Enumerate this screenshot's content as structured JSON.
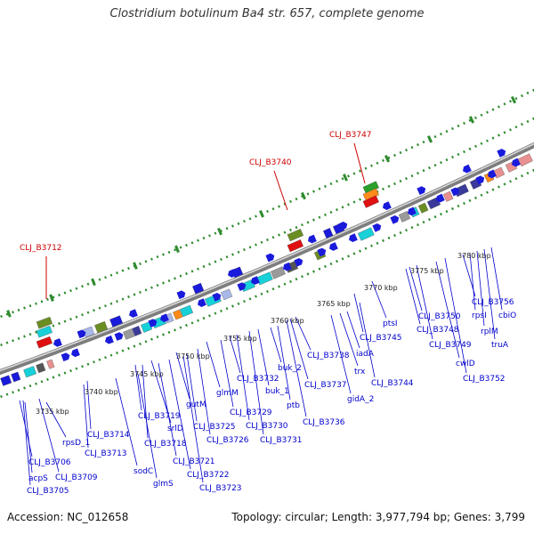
{
  "title": "Clostridium botulinum Ba4 str. 657, complete genome",
  "footer": {
    "accession": "Accession: NC_012658",
    "topology": "Topology: circular; Length: 3,977,794 bp; Genes: 3,799"
  },
  "colors": {
    "backbone": "#8a8a8a",
    "tick": "#2e8b2e",
    "gene_blue": "#1a1adb",
    "label_blue": "#0000cc",
    "label_red": "#cc0000",
    "cyan": "#18d0d8",
    "gray": "#9a9a9a",
    "darkgray": "#555555",
    "olive": "#6b8e23",
    "orange": "#ff8c1a",
    "pink": "#e89090",
    "navy": "#3a3a9a",
    "green": "#2aa02a",
    "red": "#e01010",
    "lightblue": "#a8b8e8"
  },
  "ticks": [
    {
      "label": "3735 kbp"
    },
    {
      "label": "3740 kbp"
    },
    {
      "label": "3745 kbp"
    },
    {
      "label": "3750 kbp"
    },
    {
      "label": "3755 kbp"
    },
    {
      "label": "3760 kbp"
    },
    {
      "label": "3765 kbp"
    },
    {
      "label": "3770 kbp"
    },
    {
      "label": "3775 kbp"
    },
    {
      "label": "3780 kbp"
    }
  ],
  "gene_labels": [
    {
      "text": "CLJ_B3712"
    },
    {
      "text": "CLJ_B3740"
    },
    {
      "text": "CLJ_B3747"
    },
    {
      "text": "CLJ_B3706"
    },
    {
      "text": "acpS"
    },
    {
      "text": "CLJ_B3705"
    },
    {
      "text": "rpsD_1"
    },
    {
      "text": "CLJ_B3709"
    },
    {
      "text": "CLJ_B3714"
    },
    {
      "text": "CLJ_B3713"
    },
    {
      "text": "sodC"
    },
    {
      "text": "glmS"
    },
    {
      "text": "CLJ_B3719"
    },
    {
      "text": "srlD"
    },
    {
      "text": "CLJ_B3718"
    },
    {
      "text": "gutM"
    },
    {
      "text": "CLJ_B3721"
    },
    {
      "text": "CLJ_B3722"
    },
    {
      "text": "CLJ_B3723"
    },
    {
      "text": "glmM"
    },
    {
      "text": "CLJ_B3725"
    },
    {
      "text": "CLJ_B3726"
    },
    {
      "text": "CLJ_B3732"
    },
    {
      "text": "CLJ_B3729"
    },
    {
      "text": "CLJ_B3730"
    },
    {
      "text": "CLJ_B3731"
    },
    {
      "text": "buk_2"
    },
    {
      "text": "buk_1"
    },
    {
      "text": "ptb"
    },
    {
      "text": "CLJ_B3738"
    },
    {
      "text": "CLJ_B3737"
    },
    {
      "text": "CLJ_B3736"
    },
    {
      "text": "iadA"
    },
    {
      "text": "trx"
    },
    {
      "text": "gidA_2"
    },
    {
      "text": "CLJ_B3745"
    },
    {
      "text": "CLJ_B3744"
    },
    {
      "text": "ptsI"
    },
    {
      "text": "CLJ_B3750"
    },
    {
      "text": "CLJ_B3748"
    },
    {
      "text": "CLJ_B3749"
    },
    {
      "text": "cwlD"
    },
    {
      "text": "CLJ_B3752"
    },
    {
      "text": "rpsI"
    },
    {
      "text": "rplM"
    },
    {
      "text": "truA"
    },
    {
      "text": "CLJ_B3756"
    },
    {
      "text": "cbiO"
    }
  ]
}
